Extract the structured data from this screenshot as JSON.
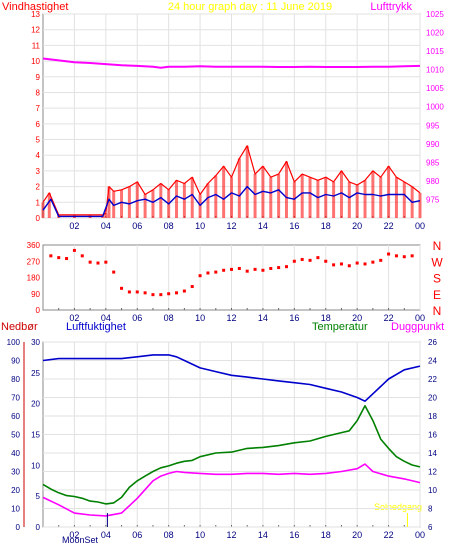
{
  "header": {
    "left_label": "Vindhastighet",
    "center_label": "24 hour graph day : 11 June 2019",
    "right_label": "Lufttrykk"
  },
  "lower_header": {
    "nedbor": "Nedbør",
    "luftfuktighet": "Luftfuktighet",
    "temperatur": "Temperatur",
    "duggpunkt": "Duggpunkt"
  },
  "footer": {
    "moonset": "MoonSet",
    "sunset": "Solnedgang"
  },
  "x_tick_labels": [
    "02",
    "04",
    "06",
    "08",
    "10",
    "12",
    "14",
    "16",
    "18",
    "20",
    "22",
    "00"
  ],
  "colors": {
    "wind": "#ff0000",
    "wind_avg": "#0000cc",
    "pressure": "#ff00ff",
    "humidity": "#0000cc",
    "temperature": "#008000",
    "dewpoint": "#ff00ff",
    "nedbor": "#cc0000",
    "sun_label": "#ffff00"
  },
  "chart_data": [
    {
      "type": "line",
      "panel": "wind_pressure",
      "x_unit": "hour",
      "xlim": [
        0,
        24
      ],
      "y_left": {
        "label": "Vindhastighet",
        "ylim": [
          0,
          13
        ],
        "ticks": [
          0,
          1,
          2,
          3,
          4,
          5,
          6,
          7,
          8,
          9,
          10,
          11,
          12,
          13
        ]
      },
      "y_right": {
        "label": "Lufttrykk",
        "ylim": [
          970,
          1025
        ],
        "ticks": [
          975,
          980,
          985,
          990,
          995,
          1000,
          1005,
          1010,
          1015,
          1020,
          1025
        ]
      },
      "series": [
        {
          "name": "Vindhastighet",
          "axis": "left",
          "x": [
            0.0,
            0.4,
            1.0,
            2.0,
            3.0,
            3.8,
            4.0,
            4.2,
            4.5,
            5.0,
            5.5,
            6.0,
            6.5,
            7.0,
            7.5,
            8.0,
            8.5,
            9.0,
            9.5,
            10.0,
            10.5,
            11.0,
            11.5,
            12.0,
            12.5,
            13.0,
            13.5,
            14.0,
            14.5,
            15.0,
            15.5,
            16.0,
            16.5,
            17.0,
            17.5,
            18.0,
            18.5,
            19.0,
            19.5,
            20.0,
            20.5,
            21.0,
            21.5,
            22.0,
            22.5,
            23.0,
            23.5,
            24.0
          ],
          "y": [
            1.0,
            1.6,
            0.2,
            0.2,
            0.2,
            0.2,
            0.3,
            2.0,
            1.7,
            1.8,
            2.0,
            2.3,
            1.5,
            1.8,
            2.2,
            1.8,
            2.4,
            2.2,
            2.6,
            1.5,
            2.2,
            2.7,
            3.3,
            2.6,
            3.8,
            4.6,
            2.8,
            3.3,
            2.6,
            2.8,
            3.6,
            2.3,
            2.8,
            2.6,
            2.4,
            2.6,
            2.3,
            3.0,
            2.3,
            2.1,
            2.4,
            3.0,
            2.6,
            3.3,
            2.6,
            2.3,
            2.0,
            1.6
          ]
        },
        {
          "name": "",
          "axis": "left",
          "x": [
            0.0,
            0.5,
            1.0,
            2.0,
            3.0,
            3.8,
            4.2,
            4.5,
            5.0,
            5.5,
            6.0,
            6.5,
            7.0,
            7.5,
            8.0,
            8.5,
            9.0,
            9.5,
            10.0,
            10.5,
            11.0,
            11.5,
            12.0,
            12.5,
            13.0,
            13.5,
            14.0,
            14.5,
            15.0,
            15.5,
            16.0,
            16.5,
            17.0,
            17.5,
            18.0,
            18.5,
            19.0,
            19.5,
            20.0,
            20.5,
            21.0,
            21.5,
            22.0,
            22.5,
            23.0,
            23.5,
            24.0
          ],
          "y": [
            0.5,
            1.2,
            0.1,
            0.1,
            0.1,
            0.1,
            1.2,
            0.8,
            1.0,
            0.9,
            1.1,
            1.2,
            1.0,
            1.3,
            0.9,
            1.4,
            1.2,
            1.5,
            0.8,
            1.3,
            1.5,
            1.2,
            1.6,
            1.4,
            2.0,
            1.5,
            1.7,
            1.6,
            1.8,
            1.3,
            1.2,
            1.6,
            1.6,
            1.3,
            1.5,
            1.4,
            1.6,
            1.3,
            1.6,
            1.5,
            1.5,
            1.4,
            1.5,
            1.5,
            1.5,
            1.0,
            1.1
          ]
        },
        {
          "name": "Lufttrykk",
          "axis": "right",
          "x": [
            0.0,
            1.0,
            2.0,
            3.0,
            4.0,
            5.0,
            6.0,
            7.0,
            7.5,
            8.0,
            9.0,
            10.0,
            11.0,
            12.0,
            13.0,
            14.0,
            15.0,
            16.0,
            17.0,
            18.0,
            19.0,
            20.0,
            21.0,
            22.0,
            23.0,
            24.0
          ],
          "y": [
            1013.0,
            1012.5,
            1012.0,
            1011.8,
            1011.5,
            1011.2,
            1011.0,
            1010.8,
            1010.5,
            1010.8,
            1010.8,
            1010.9,
            1010.8,
            1010.8,
            1010.8,
            1010.8,
            1010.7,
            1010.7,
            1010.8,
            1010.7,
            1010.7,
            1010.7,
            1010.8,
            1010.8,
            1010.9,
            1011.0
          ]
        }
      ]
    },
    {
      "type": "scatter",
      "panel": "wind_direction",
      "x_unit": "hour",
      "xlim": [
        0,
        24
      ],
      "y_left": {
        "ylim": [
          0,
          360
        ],
        "ticks": [
          0,
          45,
          90,
          135,
          180,
          225,
          270,
          315,
          360
        ]
      },
      "y_right_labels": [
        "N",
        "W",
        "S",
        "E",
        "N"
      ],
      "series": [
        {
          "name": "",
          "x": [
            0.5,
            1.0,
            1.5,
            2.0,
            2.5,
            3.0,
            3.5,
            4.0,
            4.5,
            5.0,
            5.5,
            6.0,
            6.5,
            7.0,
            7.5,
            8.0,
            8.5,
            9.0,
            9.5,
            10.0,
            10.5,
            11.0,
            11.5,
            12.0,
            12.5,
            13.0,
            13.5,
            14.0,
            14.5,
            15.0,
            15.5,
            16.0,
            16.5,
            17.0,
            17.5,
            18.0,
            18.5,
            19.0,
            19.5,
            20.0,
            20.5,
            21.0,
            21.5,
            22.0,
            22.5,
            23.0,
            23.5
          ],
          "y": [
            300,
            290,
            285,
            330,
            300,
            265,
            260,
            265,
            210,
            120,
            100,
            100,
            95,
            85,
            85,
            90,
            95,
            105,
            130,
            190,
            205,
            210,
            220,
            225,
            230,
            215,
            225,
            220,
            230,
            235,
            240,
            270,
            280,
            275,
            290,
            270,
            250,
            255,
            245,
            260,
            255,
            265,
            275,
            310,
            300,
            295,
            300
          ]
        }
      ]
    },
    {
      "type": "line",
      "panel": "humidity_temperature",
      "x_unit": "hour",
      "xlim": [
        0,
        24
      ],
      "y_left_outer": {
        "label": "Nedbør",
        "ylim": [
          0,
          100
        ],
        "ticks": [
          0,
          10,
          20,
          30,
          40,
          50,
          60,
          70,
          80,
          90,
          100
        ]
      },
      "y_left_inner": {
        "label": "Luftfuktighet",
        "ylim": [
          0,
          30
        ],
        "ticks": [
          0,
          5,
          10,
          15,
          20,
          25,
          30
        ]
      },
      "y_right": {
        "label": "Duggpunkt",
        "ylim": [
          6,
          26
        ],
        "ticks": [
          6,
          8,
          10,
          12,
          14,
          16,
          18,
          20,
          22,
          24,
          26
        ]
      },
      "series": [
        {
          "name": "Luftfuktighet",
          "axis": "left_outer",
          "x": [
            0.0,
            1.0,
            2.0,
            3.0,
            4.0,
            5.0,
            6.0,
            7.0,
            7.5,
            8.0,
            8.5,
            9.0,
            10.0,
            11.0,
            12.0,
            13.0,
            14.0,
            15.0,
            16.0,
            17.0,
            18.0,
            19.0,
            20.0,
            20.5,
            21.0,
            22.0,
            23.0,
            24.0
          ],
          "y": [
            90,
            91,
            91,
            91,
            91,
            91,
            92,
            93,
            93,
            93,
            92,
            90,
            86,
            84,
            82,
            81,
            80,
            79,
            78,
            77,
            75,
            73,
            70,
            68,
            72,
            80,
            85,
            87
          ]
        },
        {
          "name": "Temperatur",
          "axis": "right",
          "x": [
            0.0,
            0.5,
            1.0,
            1.5,
            2.0,
            2.5,
            3.0,
            3.5,
            4.0,
            4.5,
            5.0,
            5.5,
            6.0,
            6.5,
            7.0,
            7.5,
            8.0,
            8.5,
            9.0,
            9.5,
            10.0,
            11.0,
            12.0,
            13.0,
            14.0,
            15.0,
            16.0,
            17.0,
            18.0,
            19.0,
            19.5,
            20.0,
            20.5,
            21.0,
            21.5,
            22.0,
            22.5,
            23.0,
            23.5,
            24.0
          ],
          "y": [
            10.6,
            10.1,
            9.7,
            9.4,
            9.3,
            9.1,
            8.8,
            8.7,
            8.5,
            8.6,
            9.2,
            10.3,
            11.0,
            11.5,
            12.0,
            12.4,
            12.6,
            12.9,
            13.1,
            13.2,
            13.6,
            14.0,
            14.1,
            14.5,
            14.6,
            14.8,
            15.1,
            15.3,
            15.8,
            16.2,
            16.4,
            17.5,
            19.1,
            17.5,
            15.5,
            14.5,
            13.6,
            13.1,
            12.7,
            12.5
          ]
        },
        {
          "name": "Duggpunkt",
          "axis": "right",
          "x": [
            0.0,
            1.0,
            2.0,
            3.0,
            4.0,
            5.0,
            6.0,
            7.0,
            7.5,
            8.0,
            8.5,
            9.0,
            10.0,
            11.0,
            12.0,
            13.0,
            14.0,
            15.0,
            16.0,
            17.0,
            18.0,
            19.0,
            20.0,
            20.5,
            21.0,
            22.0,
            23.0,
            24.0
          ],
          "y": [
            9.2,
            8.4,
            7.5,
            7.3,
            7.2,
            7.5,
            9.1,
            11.0,
            11.5,
            11.8,
            12.0,
            11.9,
            11.8,
            11.7,
            11.7,
            11.8,
            11.8,
            11.7,
            11.8,
            11.7,
            11.8,
            12.0,
            12.3,
            12.8,
            12.0,
            11.5,
            11.2,
            10.8
          ]
        }
      ]
    }
  ]
}
